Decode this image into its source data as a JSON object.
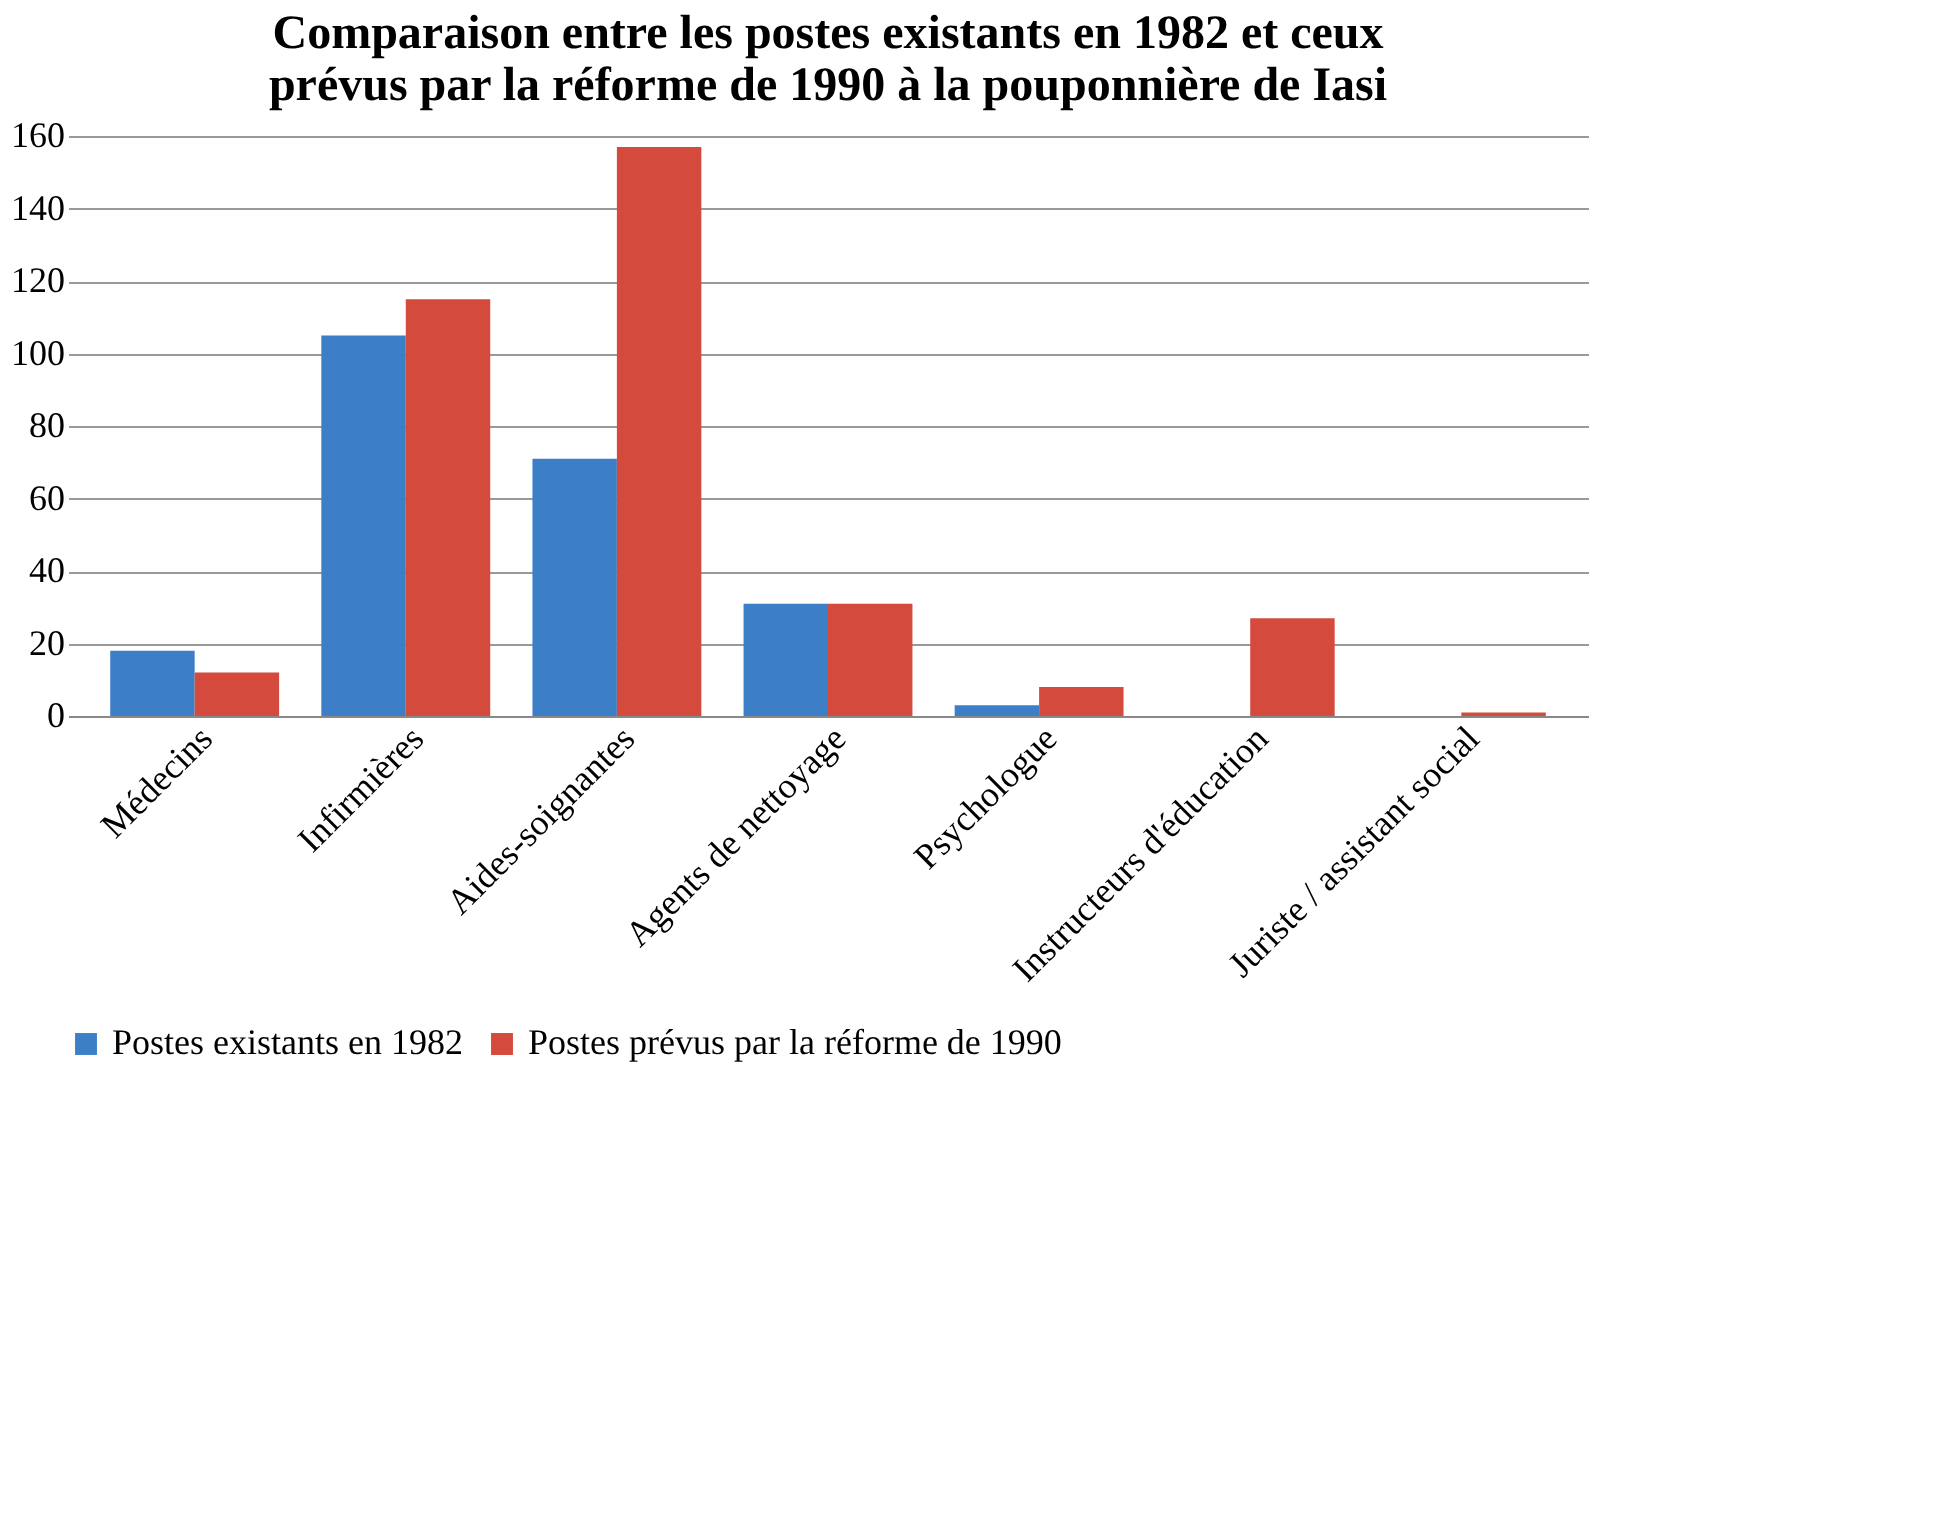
{
  "chart_data": {
    "type": "bar",
    "title": [
      "Comparaison entre les postes existants en 1982 et ceux",
      "prévus par la réforme de 1990 à la pouponnière de Iasi"
    ],
    "categories": [
      "Médecins",
      "Infirmières",
      "Aides-soignantes",
      "Agents de nettoyage",
      "Psychologue",
      "Instructeurs d'éducation",
      "Juriste / assistant social"
    ],
    "series": [
      {
        "name": "Postes existants en 1982",
        "color": "#3d7fc7",
        "values": [
          18,
          105,
          71,
          31,
          3,
          0,
          0
        ]
      },
      {
        "name": "Postes prévus par la réforme de 1990",
        "color": "#d44a3c",
        "values": [
          12,
          115,
          157,
          31,
          8,
          27,
          1
        ]
      }
    ],
    "ylim": [
      0,
      160
    ],
    "yticks": [
      0,
      20,
      40,
      60,
      80,
      100,
      120,
      140,
      160
    ],
    "grid": "y",
    "legend": "bottom"
  }
}
